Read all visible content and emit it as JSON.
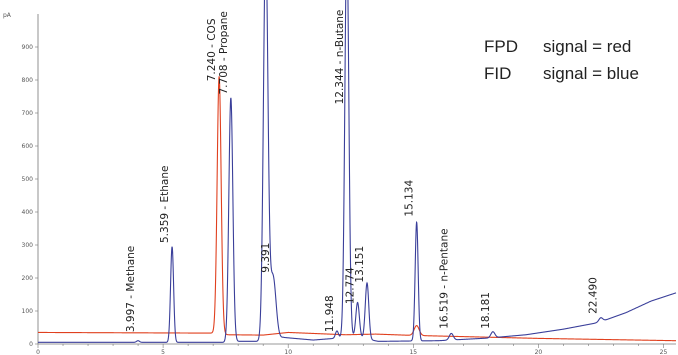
{
  "chart_data": {
    "type": "line",
    "title": "",
    "xlabel": "",
    "ylabel": "pA",
    "xlim": [
      0,
      25.5
    ],
    "ylim": [
      0,
      1000
    ],
    "yticks": [
      0,
      100,
      200,
      300,
      400,
      500,
      600,
      700,
      800,
      900
    ],
    "xticks": [
      0,
      5,
      10,
      15,
      20,
      25
    ],
    "legend": {
      "placement": "top-right",
      "lines": [
        {
          "detector": "FPD",
          "text": "signal = red",
          "color": "#e0401f"
        },
        {
          "detector": "FID",
          "text": "signal = blue",
          "color": "#3a3f9a"
        }
      ]
    },
    "series": [
      {
        "detector": "FPD",
        "color": "#e0401f",
        "baseline": [
          [
            0,
            35
          ],
          [
            7.0,
            33
          ],
          [
            7.6,
            28
          ],
          [
            9.0,
            27
          ],
          [
            10.0,
            35
          ],
          [
            12.3,
            28
          ],
          [
            13.5,
            30
          ],
          [
            15.0,
            26
          ],
          [
            20.0,
            17
          ],
          [
            25.5,
            10
          ]
        ],
        "peaks": [
          {
            "rt": 7.24,
            "height": 780,
            "width": 0.08
          },
          {
            "rt": 15.134,
            "height": 30,
            "width": 0.1
          }
        ]
      },
      {
        "detector": "FID",
        "color": "#3a3f9a",
        "baseline": [
          [
            0,
            5
          ],
          [
            7.5,
            5
          ],
          [
            8.0,
            8
          ],
          [
            9.3,
            8
          ],
          [
            9.8,
            20
          ],
          [
            11.0,
            12
          ],
          [
            12.7,
            22
          ],
          [
            13.6,
            8
          ],
          [
            16.0,
            10
          ],
          [
            18.0,
            18
          ],
          [
            19.5,
            28
          ],
          [
            21.0,
            45
          ],
          [
            22.4,
            65
          ],
          [
            23.5,
            95
          ],
          [
            24.5,
            130
          ],
          [
            25.5,
            155
          ]
        ],
        "peaks": [
          {
            "rt": 3.997,
            "height": 5,
            "width": 0.06
          },
          {
            "rt": 5.359,
            "height": 290,
            "width": 0.06
          },
          {
            "rt": 7.708,
            "height": 740,
            "width": 0.08
          },
          {
            "rt": 9.1,
            "height": 1200,
            "width": 0.09
          },
          {
            "rt": 9.391,
            "height": 195,
            "width": 0.12
          },
          {
            "rt": 11.948,
            "height": 22,
            "width": 0.06
          },
          {
            "rt": 12.344,
            "height": 1200,
            "width": 0.08
          },
          {
            "rt": 12.774,
            "height": 105,
            "width": 0.07
          },
          {
            "rt": 13.151,
            "height": 170,
            "width": 0.07
          },
          {
            "rt": 15.134,
            "height": 360,
            "width": 0.06
          },
          {
            "rt": 16.519,
            "height": 20,
            "width": 0.08
          },
          {
            "rt": 18.181,
            "height": 18,
            "width": 0.08
          },
          {
            "rt": 22.49,
            "height": 12,
            "width": 0.08
          }
        ]
      }
    ],
    "annotations": [
      {
        "rt": 3.997,
        "text": "3.997 -  Methane",
        "anchor_y": 30
      },
      {
        "rt": 5.359,
        "text": "5.359 -  Ethane",
        "anchor_y": 300
      },
      {
        "rt": 7.24,
        "text": "7.240 - COS",
        "anchor_y": 790
      },
      {
        "rt": 7.708,
        "text": "7.708 - Propane",
        "anchor_y": 750
      },
      {
        "rt": 9.391,
        "text": "9.391",
        "anchor_y": 210
      },
      {
        "rt": 11.948,
        "text": "11.948",
        "anchor_y": 30
      },
      {
        "rt": 12.344,
        "text": "12.344 - n-Butane",
        "anchor_y": 720
      },
      {
        "rt": 12.774,
        "text": "12.774",
        "anchor_y": 115
      },
      {
        "rt": 13.151,
        "text": "13.151",
        "anchor_y": 180
      },
      {
        "rt": 15.134,
        "text": "15.134",
        "anchor_y": 380
      },
      {
        "rt": 16.519,
        "text": "16.519 -  n-Pentane",
        "anchor_y": 40
      },
      {
        "rt": 18.181,
        "text": "18.181",
        "anchor_y": 40
      },
      {
        "rt": 22.49,
        "text": "22.490",
        "anchor_y": 85
      }
    ]
  }
}
